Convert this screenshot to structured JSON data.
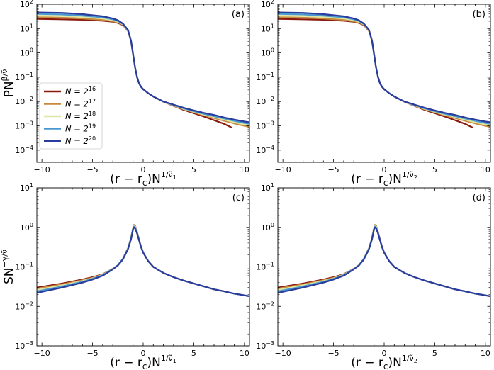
{
  "figure": {
    "legend_entries": [
      {
        "base": "N = 2",
        "exp": "16",
        "color": "#8b1a0e"
      },
      {
        "base": "N = 2",
        "exp": "17",
        "color": "#c8893a"
      },
      {
        "base": "N = 2",
        "exp": "18",
        "color": "#dde6a4"
      },
      {
        "base": "N = 2",
        "exp": "19",
        "color": "#4a98d0"
      },
      {
        "base": "N = 2",
        "exp": "20",
        "color": "#2a3c9c"
      }
    ]
  },
  "chart_data": [
    {
      "type": "line",
      "panel": "(a)",
      "yscale": "log",
      "xlim": [
        -10.5,
        10.5
      ],
      "ylim_exp": [
        -4.5,
        2
      ],
      "xticks": [
        "−10",
        "−5",
        "0",
        "5",
        "10"
      ],
      "yticks": [
        {
          "base": "10",
          "exp": "−4"
        },
        {
          "base": "10",
          "exp": "−3"
        },
        {
          "base": "10",
          "exp": "−2"
        },
        {
          "base": "10",
          "exp": "−1"
        },
        {
          "base": "10",
          "exp": "0"
        },
        {
          "base": "10",
          "exp": "1"
        },
        {
          "base": "10",
          "exp": "2"
        }
      ],
      "xlabel": {
        "main": "(r − r",
        "sub": "c",
        "mid": ")N",
        "sup": "1/ν̃",
        "supsub": "1"
      },
      "ylabel": {
        "main": "PN",
        "sup": "β/ν̃"
      },
      "legend": true,
      "x": [
        -10.5,
        -8,
        -6,
        -4,
        -3,
        -2.5,
        -2,
        -1.5,
        -1.2,
        -1,
        -0.8,
        -0.6,
        -0.4,
        -0.2,
        0,
        0.5,
        1,
        2,
        3,
        4,
        5,
        6,
        7,
        8,
        9,
        10,
        10.5
      ],
      "series": [
        {
          "name": "N = 2^16",
          "x_end": 8.7,
          "values": [
            25,
            24,
            23,
            21,
            19,
            17,
            14,
            8,
            3,
            0.9,
            0.25,
            0.1,
            0.055,
            0.04,
            0.032,
            0.022,
            0.016,
            0.0098,
            0.0066,
            0.0045,
            0.0033,
            0.0024,
            0.0017,
            0.0012,
            0.00075,
            0.00075,
            0.00075
          ]
        },
        {
          "name": "N = 2^17",
          "values": [
            29,
            28,
            26,
            23,
            20,
            18,
            14.5,
            8.2,
            3,
            0.9,
            0.25,
            0.1,
            0.055,
            0.04,
            0.032,
            0.022,
            0.016,
            0.0098,
            0.0068,
            0.0048,
            0.0036,
            0.0027,
            0.0021,
            0.0016,
            0.00125,
            0.001,
            0.0009
          ]
        },
        {
          "name": "N = 2^18",
          "values": [
            34,
            33,
            30,
            26,
            22,
            19,
            15,
            8.4,
            3.1,
            0.9,
            0.25,
            0.1,
            0.055,
            0.04,
            0.032,
            0.022,
            0.016,
            0.0098,
            0.007,
            0.005,
            0.0038,
            0.0029,
            0.0023,
            0.0018,
            0.0014,
            0.00115,
            0.00105
          ]
        },
        {
          "name": "N = 2^19",
          "values": [
            40,
            38,
            34,
            29,
            24,
            20.5,
            15.5,
            8.6,
            3.1,
            0.9,
            0.25,
            0.1,
            0.055,
            0.04,
            0.032,
            0.022,
            0.016,
            0.0099,
            0.0072,
            0.0052,
            0.004,
            0.0031,
            0.0025,
            0.002,
            0.0016,
            0.0013,
            0.0012
          ]
        },
        {
          "name": "N = 2^20",
          "values": [
            46,
            44,
            39,
            32,
            26,
            22,
            16,
            8.8,
            3.2,
            0.9,
            0.25,
            0.1,
            0.055,
            0.04,
            0.032,
            0.022,
            0.016,
            0.01,
            0.0074,
            0.0055,
            0.0043,
            0.0034,
            0.0028,
            0.0022,
            0.0018,
            0.0015,
            0.0014
          ]
        }
      ]
    },
    {
      "type": "line",
      "panel": "(b)",
      "yscale": "log",
      "xlim": [
        -10.5,
        10.5
      ],
      "ylim_exp": [
        -4.5,
        2
      ],
      "xticks": [
        "−10",
        "−5",
        "0",
        "5",
        "10"
      ],
      "yticks": [
        {
          "base": "10",
          "exp": "−4"
        },
        {
          "base": "10",
          "exp": "−3"
        },
        {
          "base": "10",
          "exp": "−2"
        },
        {
          "base": "10",
          "exp": "−1"
        },
        {
          "base": "10",
          "exp": "0"
        },
        {
          "base": "10",
          "exp": "1"
        },
        {
          "base": "10",
          "exp": "2"
        }
      ],
      "xlabel": {
        "main": "(r − r",
        "sub": "c",
        "mid": ")N",
        "sup": "1/ν̃",
        "supsub": "2"
      },
      "ylabel": null,
      "legend": false,
      "x": [
        -10.5,
        -8,
        -6,
        -4,
        -3,
        -2.5,
        -2,
        -1.5,
        -1.2,
        -1,
        -0.8,
        -0.6,
        -0.4,
        -0.2,
        0,
        0.5,
        1,
        2,
        3,
        4,
        5,
        6,
        7,
        8,
        9,
        10,
        10.5
      ],
      "series": [
        {
          "name": "N = 2^16",
          "x_end": 8.7,
          "values": [
            25,
            24,
            23,
            21,
            19,
            17,
            14,
            8,
            3,
            0.9,
            0.25,
            0.1,
            0.055,
            0.04,
            0.032,
            0.022,
            0.016,
            0.0098,
            0.0066,
            0.0045,
            0.0033,
            0.0024,
            0.0017,
            0.0012,
            0.00075,
            0.00075,
            0.00075
          ]
        },
        {
          "name": "N = 2^17",
          "values": [
            29,
            28,
            26,
            23,
            20,
            18,
            14.5,
            8.2,
            3,
            0.9,
            0.25,
            0.1,
            0.055,
            0.04,
            0.032,
            0.022,
            0.016,
            0.0098,
            0.0068,
            0.0048,
            0.0036,
            0.0027,
            0.0021,
            0.0016,
            0.00125,
            0.001,
            0.0009
          ]
        },
        {
          "name": "N = 2^18",
          "values": [
            34,
            33,
            30,
            26,
            22,
            19,
            15,
            8.4,
            3.1,
            0.9,
            0.25,
            0.1,
            0.055,
            0.04,
            0.032,
            0.022,
            0.016,
            0.0098,
            0.007,
            0.005,
            0.0038,
            0.0029,
            0.0023,
            0.0018,
            0.0014,
            0.00115,
            0.00105
          ]
        },
        {
          "name": "N = 2^19",
          "values": [
            40,
            38,
            34,
            29,
            24,
            20.5,
            15.5,
            8.6,
            3.1,
            0.9,
            0.25,
            0.1,
            0.055,
            0.04,
            0.032,
            0.022,
            0.016,
            0.0099,
            0.0072,
            0.0052,
            0.004,
            0.0031,
            0.0025,
            0.002,
            0.0016,
            0.0013,
            0.0012
          ]
        },
        {
          "name": "N = 2^20",
          "values": [
            46,
            44,
            39,
            32,
            26,
            22,
            16,
            8.8,
            3.2,
            0.9,
            0.25,
            0.1,
            0.055,
            0.04,
            0.032,
            0.022,
            0.016,
            0.01,
            0.0074,
            0.0055,
            0.0043,
            0.0034,
            0.0028,
            0.0022,
            0.0018,
            0.0015,
            0.0014
          ]
        }
      ]
    },
    {
      "type": "line",
      "panel": "(c)",
      "yscale": "log",
      "xlim": [
        -10.5,
        10.5
      ],
      "ylim_exp": [
        -3,
        1
      ],
      "xticks": [
        "−10",
        "−5",
        "0",
        "5",
        "10"
      ],
      "yticks": [
        {
          "base": "10",
          "exp": "−3"
        },
        {
          "base": "10",
          "exp": "−2"
        },
        {
          "base": "10",
          "exp": "−1"
        },
        {
          "base": "10",
          "exp": "0"
        },
        {
          "base": "10",
          "exp": "1"
        }
      ],
      "xlabel": {
        "main": "(r − r",
        "sub": "c",
        "mid": ")N",
        "sup": "1/ν̃",
        "supsub": "1"
      },
      "ylabel": {
        "main": "SN",
        "sup": "−γ/ν̃"
      },
      "legend": false,
      "x": [
        -10.5,
        -8,
        -6,
        -5,
        -4,
        -3,
        -2.5,
        -2,
        -1.5,
        -1.2,
        -1,
        -0.9,
        -0.8,
        -0.6,
        -0.4,
        -0.2,
        0,
        0.5,
        1,
        2,
        3,
        4,
        5,
        6,
        7,
        8,
        9,
        10,
        10.5
      ],
      "series": [
        {
          "name": "N = 2^16",
          "values": [
            0.03,
            0.038,
            0.048,
            0.055,
            0.065,
            0.09,
            0.11,
            0.16,
            0.3,
            0.55,
            0.95,
            1.15,
            1.1,
            0.75,
            0.48,
            0.32,
            0.23,
            0.14,
            0.1,
            0.07,
            0.055,
            0.045,
            0.038,
            0.032,
            0.027,
            0.024,
            0.021,
            0.019,
            0.018
          ]
        },
        {
          "name": "N = 2^17",
          "values": [
            0.028,
            0.036,
            0.046,
            0.053,
            0.064,
            0.09,
            0.11,
            0.16,
            0.3,
            0.55,
            0.95,
            1.15,
            1.1,
            0.75,
            0.48,
            0.32,
            0.23,
            0.14,
            0.1,
            0.07,
            0.055,
            0.045,
            0.038,
            0.032,
            0.027,
            0.024,
            0.021,
            0.019,
            0.018
          ]
        },
        {
          "name": "N = 2^18",
          "values": [
            0.026,
            0.034,
            0.044,
            0.051,
            0.063,
            0.089,
            0.11,
            0.16,
            0.3,
            0.55,
            0.95,
            1.1,
            1.05,
            0.73,
            0.47,
            0.32,
            0.23,
            0.14,
            0.1,
            0.07,
            0.055,
            0.045,
            0.038,
            0.032,
            0.027,
            0.024,
            0.021,
            0.019,
            0.018
          ]
        },
        {
          "name": "N = 2^19",
          "values": [
            0.024,
            0.032,
            0.042,
            0.05,
            0.062,
            0.088,
            0.11,
            0.16,
            0.29,
            0.53,
            0.92,
            1.05,
            1.0,
            0.72,
            0.47,
            0.32,
            0.23,
            0.14,
            0.1,
            0.07,
            0.055,
            0.045,
            0.038,
            0.032,
            0.027,
            0.024,
            0.021,
            0.019,
            0.018
          ]
        },
        {
          "name": "N = 2^20",
          "values": [
            0.022,
            0.03,
            0.04,
            0.048,
            0.06,
            0.087,
            0.108,
            0.155,
            0.28,
            0.5,
            0.88,
            1.0,
            0.95,
            0.7,
            0.46,
            0.31,
            0.23,
            0.14,
            0.1,
            0.07,
            0.055,
            0.045,
            0.038,
            0.032,
            0.027,
            0.024,
            0.021,
            0.019,
            0.018
          ]
        }
      ]
    },
    {
      "type": "line",
      "panel": "(d)",
      "yscale": "log",
      "xlim": [
        -10.5,
        10.5
      ],
      "ylim_exp": [
        -3,
        1
      ],
      "xticks": [
        "−10",
        "−5",
        "0",
        "5",
        "10"
      ],
      "yticks": [
        {
          "base": "10",
          "exp": "−3"
        },
        {
          "base": "10",
          "exp": "−2"
        },
        {
          "base": "10",
          "exp": "−1"
        },
        {
          "base": "10",
          "exp": "0"
        },
        {
          "base": "10",
          "exp": "1"
        }
      ],
      "xlabel": {
        "main": "(r − r",
        "sub": "c",
        "mid": ")N",
        "sup": "1/ν̃",
        "supsub": "2"
      },
      "ylabel": null,
      "legend": false,
      "x": [
        -10.5,
        -8,
        -6,
        -5,
        -4,
        -3,
        -2.5,
        -2,
        -1.5,
        -1.2,
        -1,
        -0.9,
        -0.8,
        -0.6,
        -0.4,
        -0.2,
        0,
        0.5,
        1,
        2,
        3,
        4,
        5,
        6,
        7,
        8,
        9,
        10,
        10.5
      ],
      "series": [
        {
          "name": "N = 2^16",
          "values": [
            0.03,
            0.038,
            0.048,
            0.055,
            0.065,
            0.09,
            0.11,
            0.16,
            0.3,
            0.55,
            0.95,
            1.15,
            1.1,
            0.75,
            0.48,
            0.32,
            0.23,
            0.14,
            0.1,
            0.07,
            0.055,
            0.045,
            0.038,
            0.032,
            0.027,
            0.024,
            0.021,
            0.019,
            0.018
          ]
        },
        {
          "name": "N = 2^17",
          "values": [
            0.028,
            0.036,
            0.046,
            0.053,
            0.064,
            0.09,
            0.11,
            0.16,
            0.3,
            0.55,
            0.95,
            1.15,
            1.1,
            0.75,
            0.48,
            0.32,
            0.23,
            0.14,
            0.1,
            0.07,
            0.055,
            0.045,
            0.038,
            0.032,
            0.027,
            0.024,
            0.021,
            0.019,
            0.018
          ]
        },
        {
          "name": "N = 2^18",
          "values": [
            0.026,
            0.034,
            0.044,
            0.051,
            0.063,
            0.089,
            0.11,
            0.16,
            0.3,
            0.55,
            0.95,
            1.1,
            1.05,
            0.73,
            0.47,
            0.32,
            0.23,
            0.14,
            0.1,
            0.07,
            0.055,
            0.045,
            0.038,
            0.032,
            0.027,
            0.024,
            0.021,
            0.019,
            0.018
          ]
        },
        {
          "name": "N = 2^19",
          "values": [
            0.024,
            0.032,
            0.042,
            0.05,
            0.062,
            0.088,
            0.11,
            0.16,
            0.29,
            0.53,
            0.92,
            1.05,
            1.0,
            0.72,
            0.47,
            0.32,
            0.23,
            0.14,
            0.1,
            0.07,
            0.055,
            0.045,
            0.038,
            0.032,
            0.027,
            0.024,
            0.021,
            0.019,
            0.018
          ]
        },
        {
          "name": "N = 2^20",
          "values": [
            0.022,
            0.03,
            0.04,
            0.048,
            0.06,
            0.087,
            0.108,
            0.155,
            0.28,
            0.5,
            0.88,
            1.0,
            0.95,
            0.7,
            0.46,
            0.31,
            0.23,
            0.14,
            0.1,
            0.07,
            0.055,
            0.045,
            0.038,
            0.032,
            0.027,
            0.024,
            0.021,
            0.019,
            0.018
          ]
        }
      ]
    }
  ]
}
